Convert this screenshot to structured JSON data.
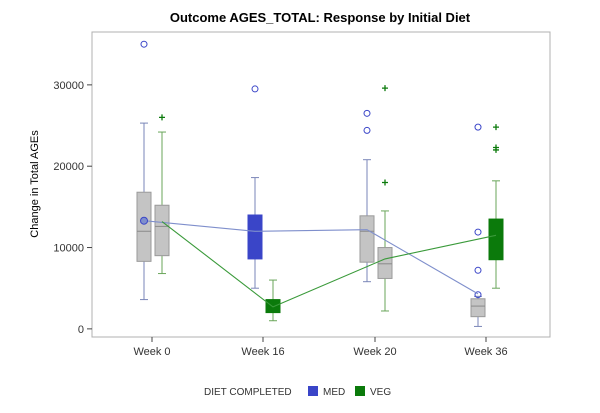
{
  "chart_data": {
    "type": "box",
    "title": "Outcome AGES_TOTAL: Response by Initial Diet",
    "xlabel": "",
    "ylabel": "Change in Total AGEs",
    "ylim": [
      -1000,
      36500
    ],
    "yticks": [
      0,
      10000,
      20000,
      30000
    ],
    "ytick_labels": [
      "0",
      "10000",
      "20000",
      "30000"
    ],
    "categories": [
      "Week 0",
      "Week 16",
      "Week 20",
      "Week 36"
    ],
    "legend": {
      "title": "DIET COMPLETED",
      "entries": [
        {
          "name": "MED",
          "color": "#3a45c8"
        },
        {
          "name": "VEG",
          "color": "#0b7a0b"
        }
      ]
    },
    "colors": {
      "med": "#3a45c8",
      "veg": "#0b7a0b",
      "neutral_fill": "#c4c4c4",
      "med_whisker": "#7a86b8",
      "veg_whisker": "#6aa65a",
      "med_line": "#7f8fcc",
      "veg_line": "#3a9a3a",
      "frame": "#b0b0b0"
    },
    "series": [
      {
        "name": "MED",
        "mean_line": [
          13300,
          12000,
          12200,
          4300
        ],
        "boxes": [
          {
            "category": "Week 0",
            "min": 3600,
            "q1": 8300,
            "median": 12000,
            "q3": 16800,
            "max": 25300,
            "mean": 13300,
            "highlight": false,
            "outliers": [
              35000
            ]
          },
          {
            "category": "Week 16",
            "min": 5000,
            "q1": 8600,
            "median": 11800,
            "q3": 14000,
            "max": 18600,
            "mean": 12000,
            "highlight": true,
            "outliers": [
              29500
            ]
          },
          {
            "category": "Week 20",
            "min": 5800,
            "q1": 8200,
            "median": 12000,
            "q3": 13900,
            "max": 20800,
            "mean": 12200,
            "highlight": false,
            "outliers": [
              26500,
              24400
            ]
          },
          {
            "category": "Week 36",
            "min": 300,
            "q1": 1500,
            "median": 2800,
            "q3": 3700,
            "max": 4000,
            "mean": 4300,
            "highlight": false,
            "outliers": [
              24800,
              11900,
              7200,
              4200
            ]
          }
        ]
      },
      {
        "name": "VEG",
        "mean_line": [
          13200,
          2700,
          8600,
          11500
        ],
        "boxes": [
          {
            "category": "Week 0",
            "min": 6800,
            "q1": 9000,
            "median": 12600,
            "q3": 15200,
            "max": 24200,
            "mean": 13200,
            "highlight": false,
            "outliers": [
              26000
            ]
          },
          {
            "category": "Week 16",
            "min": 1000,
            "q1": 2000,
            "median": 2800,
            "q3": 3600,
            "max": 6000,
            "mean": 2700,
            "highlight": true,
            "outliers": []
          },
          {
            "category": "Week 20",
            "min": 2200,
            "q1": 6200,
            "median": 8000,
            "q3": 10000,
            "max": 14500,
            "mean": 8600,
            "highlight": false,
            "outliers": [
              29600,
              18000
            ]
          },
          {
            "category": "Week 36",
            "min": 5000,
            "q1": 8500,
            "median": 11000,
            "q3": 13500,
            "max": 18200,
            "mean": 11500,
            "highlight": true,
            "outliers": [
              24800,
              22300,
              22000
            ]
          }
        ]
      }
    ]
  }
}
